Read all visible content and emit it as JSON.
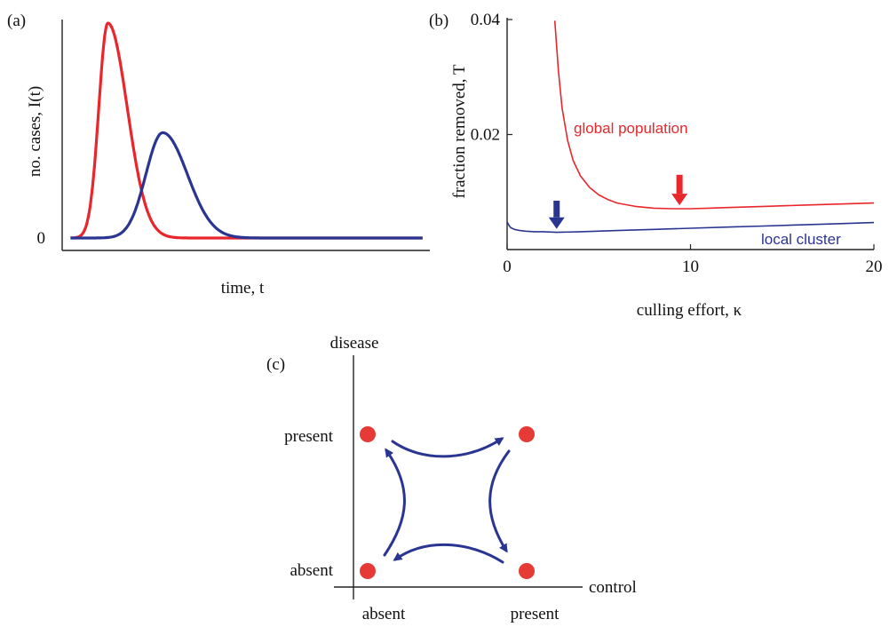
{
  "colors": {
    "red": "#e8262b",
    "blue": "#2a3591",
    "axis": "#222222",
    "dot": "#e53a35"
  },
  "chart_data": [
    {
      "panel_label": "(a)",
      "type": "line",
      "ylabel": "no. cases, I(t)",
      "xlabel": "time, t",
      "y_tick_labels": [
        "0"
      ],
      "note": "",
      "series": [
        {
          "color": "red",
          "peak_time": 0.12,
          "peak_height": 1.0,
          "rise": 0.035,
          "fall": 0.075,
          "baseline": 0.0
        },
        {
          "color": "blue",
          "peak_time": 0.27,
          "peak_height": 0.49,
          "rise": 0.065,
          "fall": 0.095,
          "baseline": 0.0
        }
      ]
    },
    {
      "panel_label": "(b)",
      "type": "line",
      "xlabel": "culling effort, κ",
      "ylabel": "fraction removed, T",
      "xlim": [
        0,
        20
      ],
      "ylim": [
        0,
        0.04
      ],
      "x_ticks": [
        "0",
        "10",
        "20"
      ],
      "y_ticks": [
        "0.02",
        "0.04"
      ],
      "series": [
        {
          "name": "global population",
          "color": "red",
          "x": [
            2.6,
            2.8,
            3.0,
            3.3,
            3.6,
            4.0,
            4.5,
            5.0,
            5.5,
            6.0,
            7.0,
            8.0,
            9.0,
            10.0,
            11.0,
            12.0,
            14.0,
            16.0,
            18.0,
            20.0
          ],
          "y": [
            0.0398,
            0.031,
            0.0245,
            0.019,
            0.0155,
            0.0128,
            0.0108,
            0.0095,
            0.0087,
            0.0081,
            0.0075,
            0.0072,
            0.0071,
            0.0071,
            0.0072,
            0.0073,
            0.0075,
            0.0077,
            0.0079,
            0.0081
          ]
        },
        {
          "name": "local cluster",
          "color": "blue",
          "x": [
            0.0,
            0.1,
            0.2,
            0.4,
            0.7,
            1.0,
            1.5,
            2.0,
            2.7,
            4.0,
            6.0,
            8.0,
            10.0,
            12.0,
            14.0,
            16.0,
            18.0,
            20.0
          ],
          "y": [
            0.0048,
            0.0042,
            0.0038,
            0.0035,
            0.0033,
            0.0032,
            0.0031,
            0.0031,
            0.003,
            0.0031,
            0.0033,
            0.0035,
            0.0037,
            0.0039,
            0.0041,
            0.0043,
            0.0045,
            0.0047
          ]
        }
      ],
      "arrows": [
        {
          "color": "blue",
          "x": 2.7,
          "tip_y": 0.0036,
          "tail_y": 0.0085
        },
        {
          "color": "red",
          "x": 9.4,
          "tip_y": 0.0077,
          "tail_y": 0.013
        }
      ]
    }
  ],
  "diagram": {
    "panel_label": "(c)",
    "y_axis_label": "disease",
    "x_axis_label": "control",
    "row_labels": [
      "present",
      "absent"
    ],
    "col_labels": [
      "absent",
      "present"
    ]
  }
}
